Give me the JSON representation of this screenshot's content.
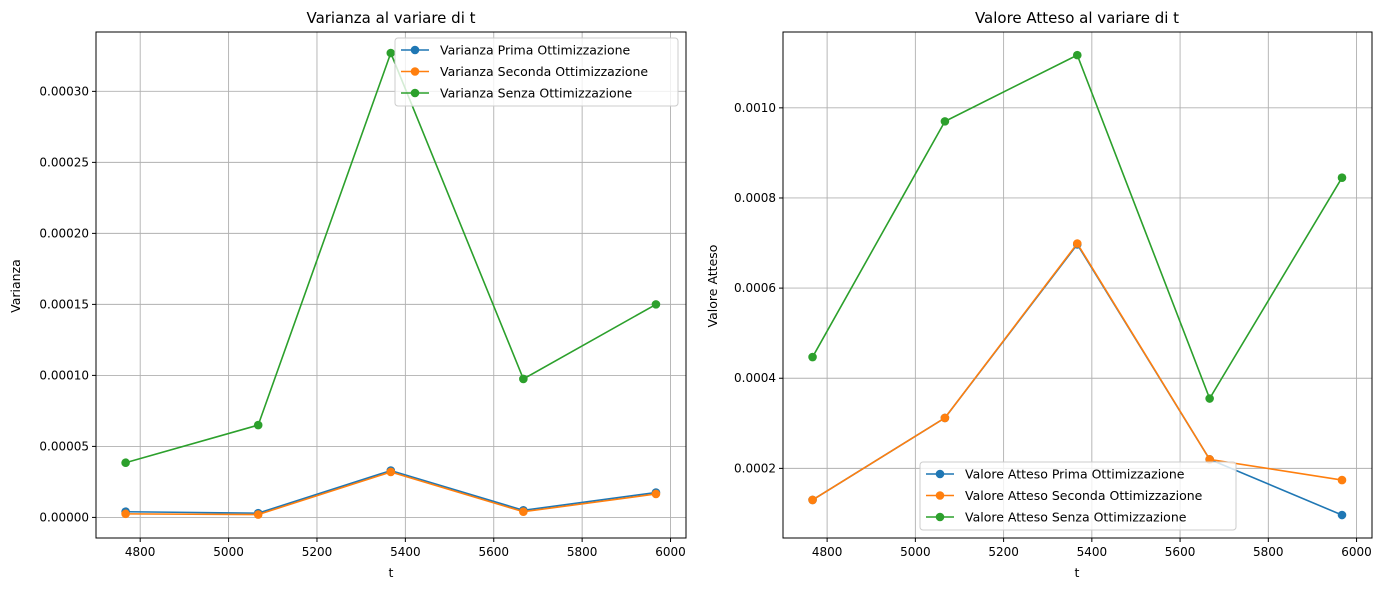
{
  "chart_data": [
    {
      "type": "line",
      "title": "Varianza al variare di t",
      "xlabel": "t",
      "ylabel": "Varianza",
      "x": [
        4767,
        5067,
        5367,
        5667,
        5967
      ],
      "xlim": [
        4700,
        6035
      ],
      "ylim": [
        -1.45e-05,
        0.0003418
      ],
      "xticks": [
        4800,
        5000,
        5200,
        5400,
        5600,
        5800,
        6000
      ],
      "xtick_labels": [
        "4800",
        "5000",
        "5200",
        "5400",
        "5600",
        "5800",
        "6000"
      ],
      "yticks": [
        0,
        5e-05,
        0.0001,
        0.00015,
        0.0002,
        0.00025,
        0.0003
      ],
      "ytick_labels": [
        "0.00000",
        "0.00005",
        "0.00010",
        "0.00015",
        "0.00020",
        "0.00025",
        "0.00030"
      ],
      "grid": true,
      "legend_position": "top-right",
      "series": [
        {
          "name": "Varianza Prima Ottimizzazione",
          "color": "#1f77b4",
          "values": [
            4e-06,
            3e-06,
            3.3e-05,
            5e-06,
            1.75e-05
          ]
        },
        {
          "name": "Varianza Seconda Ottimizzazione",
          "color": "#ff7f0e",
          "values": [
            2.5e-06,
            2e-06,
            3.2e-05,
            4e-06,
            1.65e-05
          ]
        },
        {
          "name": "Varianza Senza Ottimizzazione",
          "color": "#2ca02c",
          "values": [
            3.85e-05,
            6.5e-05,
            0.000327,
            9.75e-05,
            0.00015
          ]
        }
      ]
    },
    {
      "type": "line",
      "title": "Valore Atteso al variare di t",
      "xlabel": "t",
      "ylabel": "Valore Atteso",
      "x": [
        4767,
        5067,
        5367,
        5667,
        5967
      ],
      "xlim": [
        4700,
        6035
      ],
      "ylim": [
        4.55e-05,
        0.0011683
      ],
      "xticks": [
        4800,
        5000,
        5200,
        5400,
        5600,
        5800,
        6000
      ],
      "xtick_labels": [
        "4800",
        "5000",
        "5200",
        "5400",
        "5600",
        "5800",
        "6000"
      ],
      "yticks": [
        0.0002,
        0.0004,
        0.0006,
        0.0008,
        0.001
      ],
      "ytick_labels": [
        "0.0002",
        "0.0004",
        "0.0006",
        "0.0008",
        "0.0010"
      ],
      "grid": true,
      "legend_position": "bottom-center",
      "series": [
        {
          "name": "Valore Atteso Prima Ottimizzazione",
          "color": "#1f77b4",
          "values": [
            0.00013,
            0.000312,
            0.000697,
            0.00022,
            9.65e-05
          ]
        },
        {
          "name": "Valore Atteso Seconda Ottimizzazione",
          "color": "#ff7f0e",
          "values": [
            0.00013,
            0.000312,
            0.000699,
            0.00022,
            0.000174
          ]
        },
        {
          "name": "Valore Atteso Senza Ottimizzazione",
          "color": "#2ca02c",
          "values": [
            0.000447,
            0.00097,
            0.001117,
            0.000355,
            0.000845
          ]
        }
      ]
    }
  ]
}
